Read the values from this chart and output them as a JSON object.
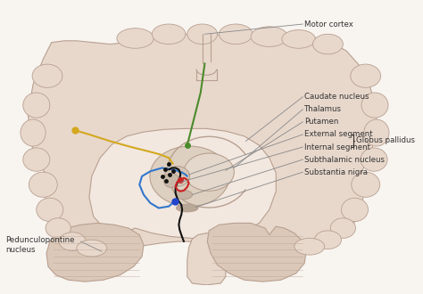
{
  "bg_color": "#f8f4f0",
  "brain_fill_color": "#e8d8cc",
  "brain_outline_color": "#b8a090",
  "inner_fill_color": "#f2e8e0",
  "gyri_fill_color": "#dcc8b8",
  "annotation_color": "#333333",
  "labels": {
    "motor_cortex": "Motor cortex",
    "caudate": "Caudate nucleus",
    "thalamus": "Thalamus",
    "putamen": "Putamen",
    "external_segment": "External segment",
    "internal_segment": "Internal segment",
    "globus_pallidus": "Globus pallidus",
    "subthalamic": "Subthalamic nucleus",
    "substantia_nigra": "Substantia nigra",
    "pedunculopontine": "Pedunculopontine\nnucleus"
  },
  "node_colors": {
    "yellow": "#d4a820",
    "green_top": "#4a8a2a",
    "black_nodes": "#111111",
    "red_node": "#cc2222",
    "blue_node": "#2244cc"
  },
  "path_colors": {
    "yellow_path": "#d4a820",
    "green_path": "#4a8a2a",
    "blue_path": "#3377cc",
    "black_path": "#111111",
    "red_path": "#cc2222"
  }
}
